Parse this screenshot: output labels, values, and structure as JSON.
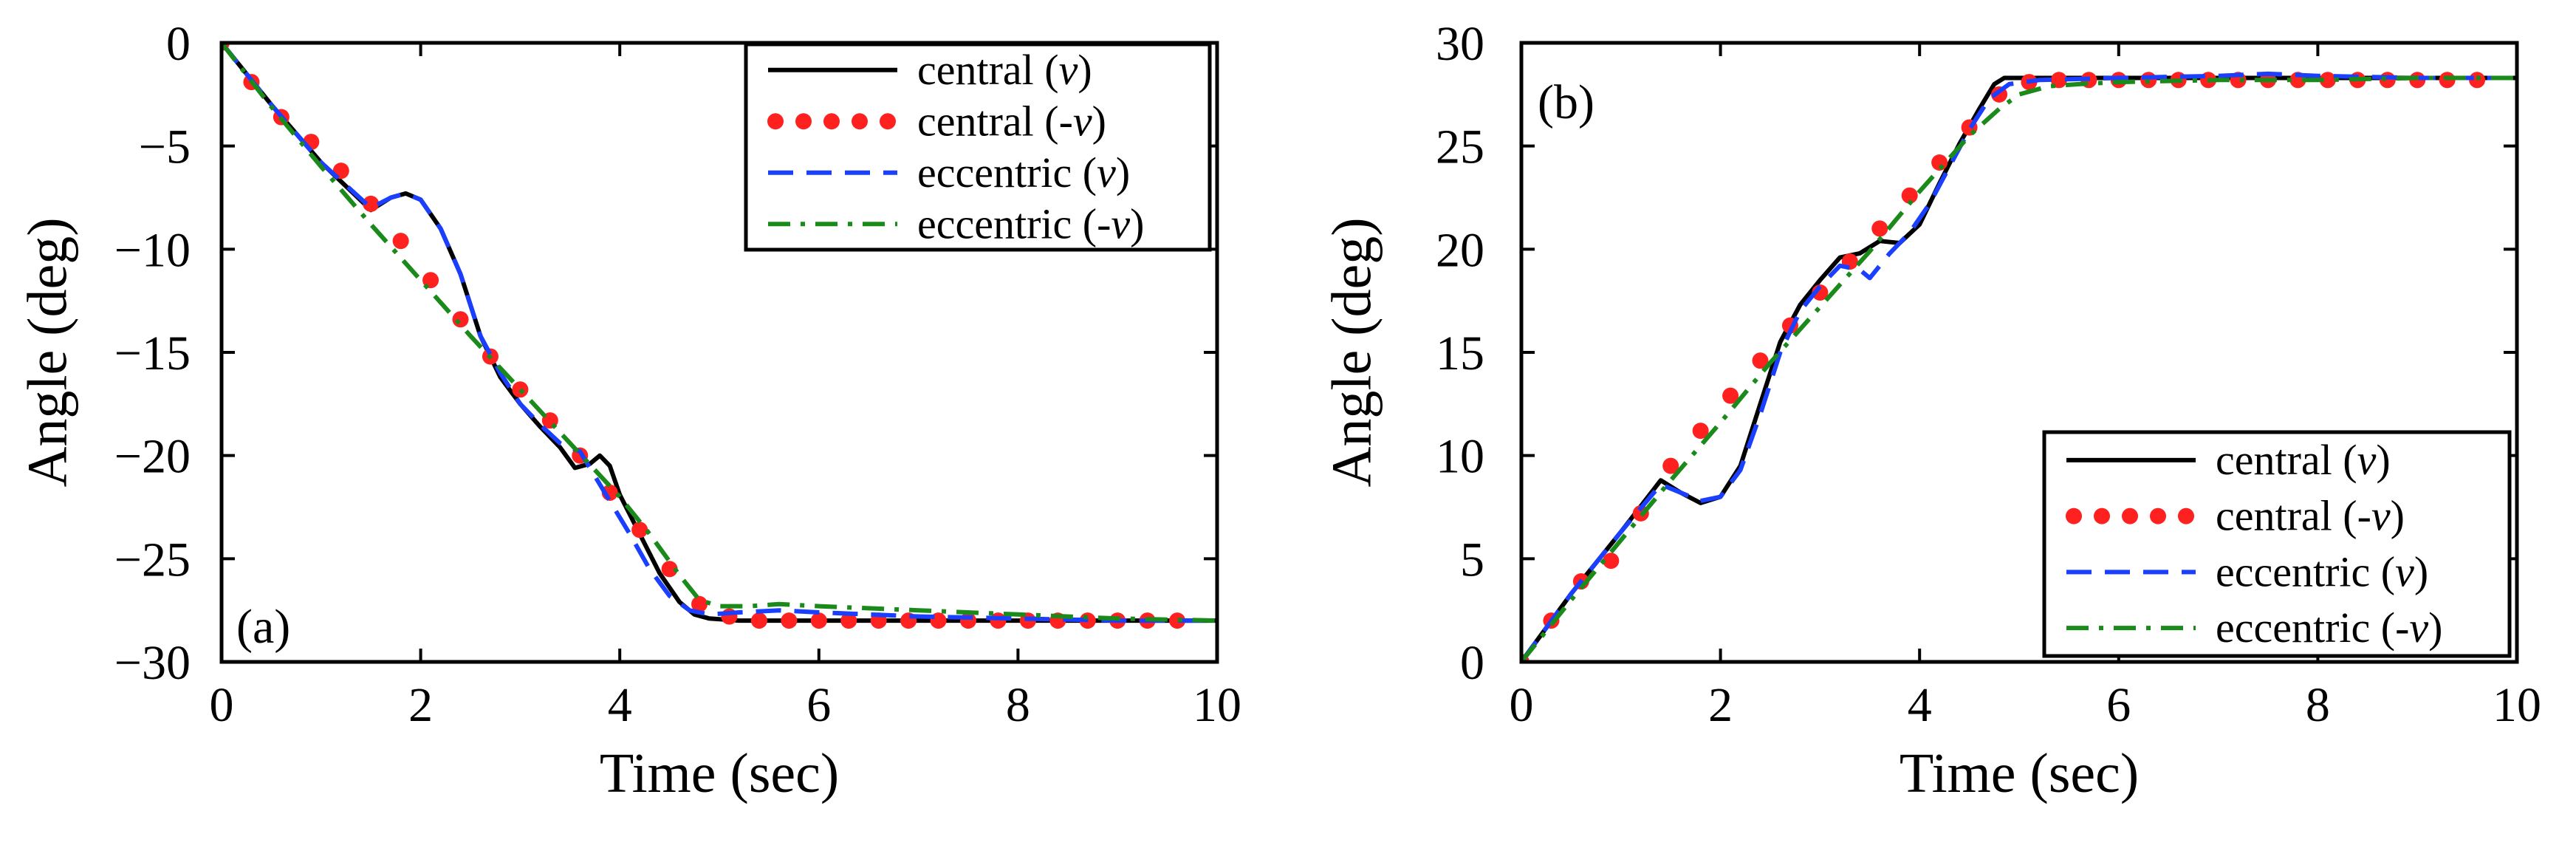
{
  "chart_data": [
    {
      "type": "line",
      "panel_label": "(a)",
      "xlabel": "Time (sec)",
      "ylabel": "Angle (deg)",
      "xlim": [
        0,
        10
      ],
      "ylim": [
        -30,
        0
      ],
      "xticks": [
        0,
        2,
        4,
        6,
        8,
        10
      ],
      "yticks": [
        0,
        -5,
        -10,
        -15,
        -20,
        -25,
        -30
      ],
      "grid": false,
      "legend_position": "top-right",
      "series": [
        {
          "name": "central (v)",
          "label_prefix": "central ",
          "label_var": "v",
          "label_neg": false,
          "style": "solid",
          "color": "#000000",
          "x": [
            0,
            0.5,
            1.0,
            1.5,
            1.7,
            1.85,
            2.0,
            2.2,
            2.4,
            2.6,
            2.8,
            3.0,
            3.2,
            3.4,
            3.55,
            3.7,
            3.8,
            3.9,
            4.0,
            4.2,
            4.4,
            4.6,
            4.75,
            4.9,
            5.2,
            5.6,
            6.0,
            7.0,
            8.0,
            9.0,
            10.0
          ],
          "y": [
            0,
            -3.0,
            -5.8,
            -8.1,
            -7.5,
            -7.3,
            -7.6,
            -9.0,
            -11.2,
            -14.2,
            -16.2,
            -17.5,
            -18.6,
            -19.6,
            -20.6,
            -20.4,
            -20.0,
            -20.5,
            -21.9,
            -23.8,
            -25.7,
            -27.1,
            -27.7,
            -27.9,
            -28.0,
            -28.0,
            -28.0,
            -28.0,
            -28.0,
            -28.0,
            -28.0
          ]
        },
        {
          "name": "central (-v)",
          "label_prefix": "central ",
          "label_var": "v",
          "label_neg": true,
          "style": "dotted",
          "color": "#ff2020",
          "x": [
            0,
            0.3,
            0.6,
            0.9,
            1.2,
            1.5,
            1.8,
            2.1,
            2.4,
            2.7,
            3.0,
            3.3,
            3.6,
            3.9,
            4.2,
            4.5,
            4.8,
            5.1,
            5.4,
            5.7,
            6.0,
            6.3,
            6.6,
            6.9,
            7.2,
            7.5,
            7.8,
            8.1,
            8.4,
            8.7,
            9.0,
            9.3,
            9.6
          ],
          "y": [
            0,
            -1.9,
            -3.6,
            -4.8,
            -6.2,
            -7.8,
            -9.6,
            -11.5,
            -13.4,
            -15.2,
            -16.8,
            -18.3,
            -20.0,
            -21.8,
            -23.6,
            -25.5,
            -27.2,
            -27.8,
            -28.0,
            -28.0,
            -28.0,
            -28.0,
            -28.0,
            -28.0,
            -28.0,
            -28.0,
            -28.0,
            -28.0,
            -28.0,
            -28.0,
            -28.0,
            -28.0,
            -28.0
          ]
        },
        {
          "name": "eccentric (v)",
          "label_prefix": "eccentric ",
          "label_var": "v",
          "label_neg": false,
          "style": "dashed",
          "color": "#1a3fff",
          "x": [
            0,
            0.5,
            1.0,
            1.5,
            1.7,
            1.85,
            2.0,
            2.2,
            2.4,
            2.6,
            2.8,
            3.0,
            3.2,
            3.4,
            3.6,
            3.75,
            3.9,
            4.1,
            4.3,
            4.5,
            4.7,
            4.9,
            5.2,
            5.6,
            6.0,
            7.0,
            8.0,
            9.0,
            10.0
          ],
          "y": [
            0,
            -3.0,
            -5.8,
            -8.0,
            -7.5,
            -7.3,
            -7.6,
            -9.0,
            -11.2,
            -14.2,
            -16.0,
            -17.5,
            -18.5,
            -19.4,
            -19.8,
            -21.0,
            -22.2,
            -23.8,
            -25.5,
            -26.8,
            -27.5,
            -27.7,
            -27.6,
            -27.5,
            -27.6,
            -27.8,
            -27.9,
            -28.0,
            -28.0
          ]
        },
        {
          "name": "eccentric (-v)",
          "label_prefix": "eccentric ",
          "label_var": "v",
          "label_neg": true,
          "style": "dashdot",
          "color": "#1a8a1a",
          "x": [
            0,
            0.5,
            1.0,
            1.5,
            2.0,
            2.5,
            3.0,
            3.5,
            4.0,
            4.3,
            4.6,
            4.8,
            5.0,
            5.3,
            5.6,
            6.0,
            7.0,
            8.0,
            9.0,
            10.0
          ],
          "y": [
            0,
            -3.1,
            -6.0,
            -8.8,
            -11.5,
            -14.2,
            -16.8,
            -19.4,
            -22.0,
            -23.8,
            -25.8,
            -27.0,
            -27.3,
            -27.3,
            -27.2,
            -27.3,
            -27.5,
            -27.7,
            -27.9,
            -28.0
          ]
        }
      ]
    },
    {
      "type": "line",
      "panel_label": "(b)",
      "xlabel": "Time (sec)",
      "ylabel": "Angle (deg)",
      "xlim": [
        0,
        10
      ],
      "ylim": [
        0,
        30
      ],
      "xticks": [
        0,
        2,
        4,
        6,
        8,
        10
      ],
      "yticks": [
        0,
        5,
        10,
        15,
        20,
        25,
        30
      ],
      "grid": false,
      "legend_position": "bottom-right",
      "series": [
        {
          "name": "central (v)",
          "label_prefix": "central ",
          "label_var": "v",
          "label_neg": false,
          "style": "solid",
          "color": "#000000",
          "x": [
            0,
            0.5,
            1.0,
            1.4,
            1.6,
            1.8,
            2.0,
            2.2,
            2.4,
            2.6,
            2.8,
            3.0,
            3.2,
            3.4,
            3.6,
            3.8,
            4.0,
            4.2,
            4.4,
            4.6,
            4.75,
            4.85,
            5.2,
            6.0,
            7.0,
            8.0,
            9.0,
            10.0
          ],
          "y": [
            0,
            3.3,
            6.3,
            8.8,
            8.2,
            7.7,
            8.0,
            9.5,
            12.5,
            15.5,
            17.3,
            18.5,
            19.6,
            19.8,
            20.4,
            20.3,
            21.2,
            23.2,
            25.1,
            26.8,
            28.0,
            28.3,
            28.3,
            28.3,
            28.3,
            28.3,
            28.3,
            28.3
          ]
        },
        {
          "name": "central (-v)",
          "label_prefix": "central ",
          "label_var": "v",
          "label_neg": true,
          "style": "dotted",
          "color": "#ff2020",
          "x": [
            0,
            0.3,
            0.6,
            0.9,
            1.2,
            1.5,
            1.8,
            2.1,
            2.4,
            2.7,
            3.0,
            3.3,
            3.6,
            3.9,
            4.2,
            4.5,
            4.8,
            5.1,
            5.4,
            5.7,
            6.0,
            6.3,
            6.6,
            6.9,
            7.2,
            7.5,
            7.8,
            8.1,
            8.4,
            8.7,
            9.0,
            9.3,
            9.6
          ],
          "y": [
            0,
            2.0,
            3.9,
            4.9,
            7.2,
            9.5,
            11.2,
            12.9,
            14.6,
            16.3,
            17.9,
            19.4,
            21.0,
            22.6,
            24.2,
            25.9,
            27.5,
            28.1,
            28.2,
            28.2,
            28.2,
            28.2,
            28.2,
            28.2,
            28.2,
            28.2,
            28.2,
            28.2,
            28.2,
            28.2,
            28.2,
            28.2,
            28.2
          ]
        },
        {
          "name": "eccentric (v)",
          "label_prefix": "eccentric ",
          "label_var": "v",
          "label_neg": false,
          "style": "dashed",
          "color": "#1a3fff",
          "x": [
            0,
            0.5,
            1.0,
            1.4,
            1.6,
            1.8,
            2.0,
            2.2,
            2.4,
            2.6,
            2.8,
            3.0,
            3.2,
            3.4,
            3.5,
            3.7,
            3.9,
            4.1,
            4.3,
            4.5,
            4.7,
            4.9,
            5.2,
            6.0,
            7.0,
            7.5,
            8.0,
            9.0,
            10.0
          ],
          "y": [
            0,
            3.3,
            6.3,
            8.6,
            8.2,
            7.8,
            8.0,
            9.3,
            12.0,
            15.0,
            17.0,
            18.2,
            19.2,
            19.0,
            18.6,
            19.8,
            20.8,
            22.2,
            24.0,
            25.8,
            27.3,
            28.0,
            28.2,
            28.3,
            28.4,
            28.5,
            28.4,
            28.3,
            28.3
          ]
        },
        {
          "name": "eccentric (-v)",
          "label_prefix": "eccentric ",
          "label_var": "v",
          "label_neg": true,
          "style": "dashdot",
          "color": "#1a8a1a",
          "x": [
            0,
            0.5,
            1.0,
            1.5,
            2.0,
            2.5,
            3.0,
            3.5,
            4.0,
            4.5,
            4.8,
            5.0,
            5.3,
            5.6,
            6.0,
            7.0,
            8.0,
            9.0,
            10.0
          ],
          "y": [
            0,
            3.0,
            5.9,
            8.8,
            11.6,
            14.5,
            17.2,
            19.9,
            22.8,
            25.5,
            26.8,
            27.5,
            27.9,
            28.0,
            28.1,
            28.2,
            28.2,
            28.3,
            28.3
          ]
        }
      ]
    }
  ]
}
